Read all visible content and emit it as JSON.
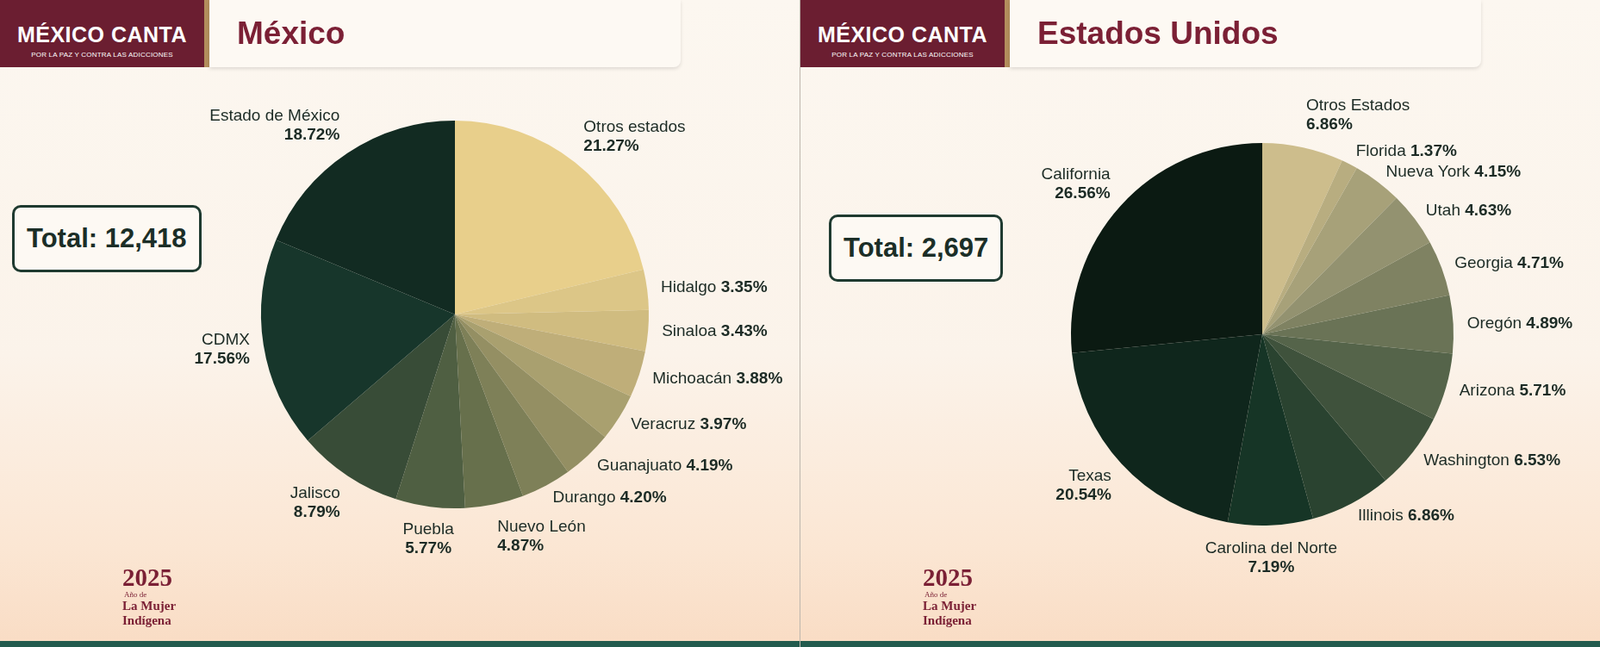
{
  "header": {
    "logo_title": "MÉXICO CANTA",
    "logo_subtitle": "POR LA PAZ Y CONTRA LAS ADICCIONES"
  },
  "footer": {
    "year": "2025",
    "caption": [
      "Año de",
      "La Mujer",
      "Indígena"
    ]
  },
  "chart_data": [
    {
      "type": "pie",
      "title": "México",
      "annotation": "Total: 12,418",
      "data_labels": true,
      "categories": [
        "Otros estados",
        "Hidalgo",
        "Sinaloa",
        "Michoacán",
        "Veracruz",
        "Guanajuato",
        "Durango",
        "Nuevo León",
        "Puebla",
        "Jalisco",
        "CDMX",
        "Estado de México"
      ],
      "values": [
        21.27,
        3.35,
        3.43,
        3.88,
        3.97,
        4.19,
        4.2,
        4.87,
        5.77,
        8.79,
        17.56,
        18.72
      ],
      "value_labels": [
        "21.27%",
        "3.35%",
        "3.43%",
        "3.88%",
        "3.97%",
        "4.19%",
        "4.20%",
        "4.87%",
        "5.77%",
        "8.79%",
        "17.56%",
        "18.72%"
      ],
      "colors": [
        "#e8cf8b",
        "#dcc687",
        "#d0bc80",
        "#bfae79",
        "#a9a06f",
        "#948f63",
        "#7e8058",
        "#67704c",
        "#4f5f42",
        "#384c37",
        "#17362b",
        "#122b22"
      ]
    },
    {
      "type": "pie",
      "title": "Estados Unidos",
      "annotation": "Total: 2,697",
      "data_labels": true,
      "categories": [
        "Otros Estados",
        "Florida",
        "Nueva York",
        "Utah",
        "Georgia",
        "Oregón",
        "Arizona",
        "Washington",
        "Illinois",
        "Carolina del Norte",
        "Texas",
        "California"
      ],
      "values": [
        6.86,
        1.37,
        4.15,
        4.63,
        4.71,
        4.89,
        5.71,
        6.53,
        6.86,
        7.19,
        20.54,
        26.56
      ],
      "value_labels": [
        "6.86%",
        "1.37%",
        "4.15%",
        "4.63%",
        "4.71%",
        "4.89%",
        "5.71%",
        "6.53%",
        "6.86%",
        "7.19%",
        "20.54%",
        "26.56%"
      ],
      "colors": [
        "#cdbd8c",
        "#b8ad80",
        "#a7a179",
        "#939270",
        "#7f8262",
        "#6a7356",
        "#55644a",
        "#3f523c",
        "#2a4330",
        "#163526",
        "#0f261c",
        "#0b1a12"
      ]
    }
  ]
}
